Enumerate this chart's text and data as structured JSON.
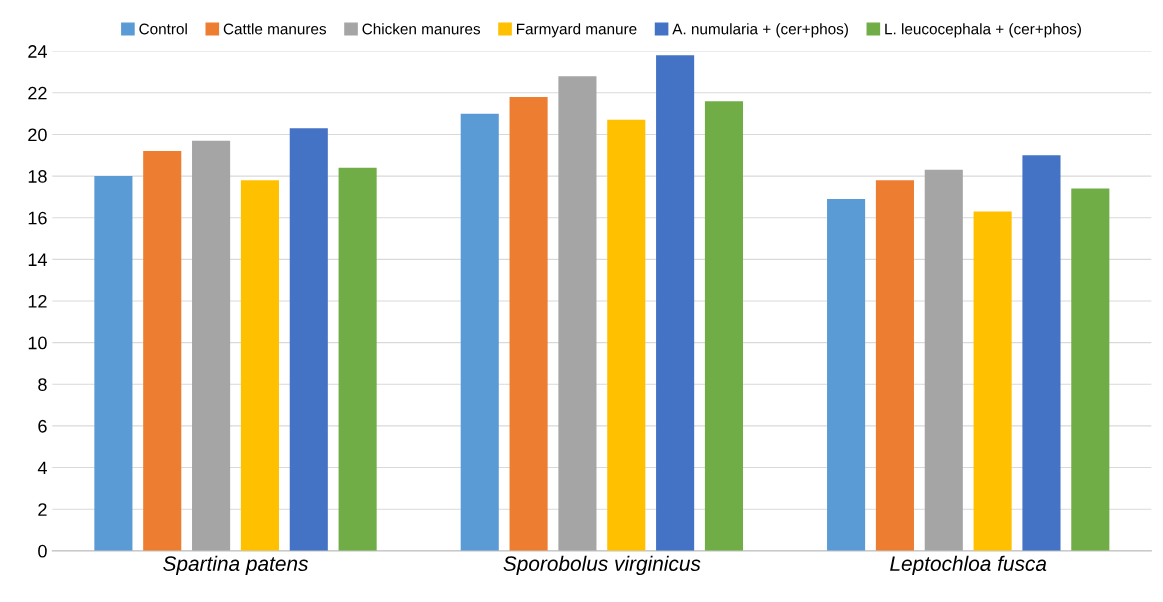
{
  "chart_data": {
    "type": "bar",
    "categories": [
      "Spartina patens",
      "Sporobolus virginicus",
      "Leptochloa fusca"
    ],
    "series": [
      {
        "name": "Control",
        "color": "#5b9bd5",
        "values": [
          18.0,
          21.0,
          16.9
        ]
      },
      {
        "name": "Cattle manures",
        "color": "#ed7d31",
        "values": [
          19.2,
          21.8,
          17.8
        ]
      },
      {
        "name": "Chicken manures",
        "color": "#a5a5a5",
        "values": [
          19.7,
          22.8,
          18.3
        ]
      },
      {
        "name": "Farmyard manure",
        "color": "#ffc000",
        "values": [
          17.8,
          20.7,
          16.3
        ]
      },
      {
        "name": "A. numularia + (cer+phos)",
        "color": "#4472c4",
        "values": [
          20.3,
          23.8,
          19.0
        ]
      },
      {
        "name": "L. leucocephala + (cer+phos)",
        "color": "#70ad47",
        "values": [
          18.4,
          21.6,
          17.4
        ]
      }
    ],
    "ylim": [
      0,
      24
    ],
    "yticks": [
      0,
      2,
      4,
      6,
      8,
      10,
      12,
      14,
      16,
      18,
      20,
      22,
      24
    ],
    "grid": "y",
    "legend": "top"
  }
}
